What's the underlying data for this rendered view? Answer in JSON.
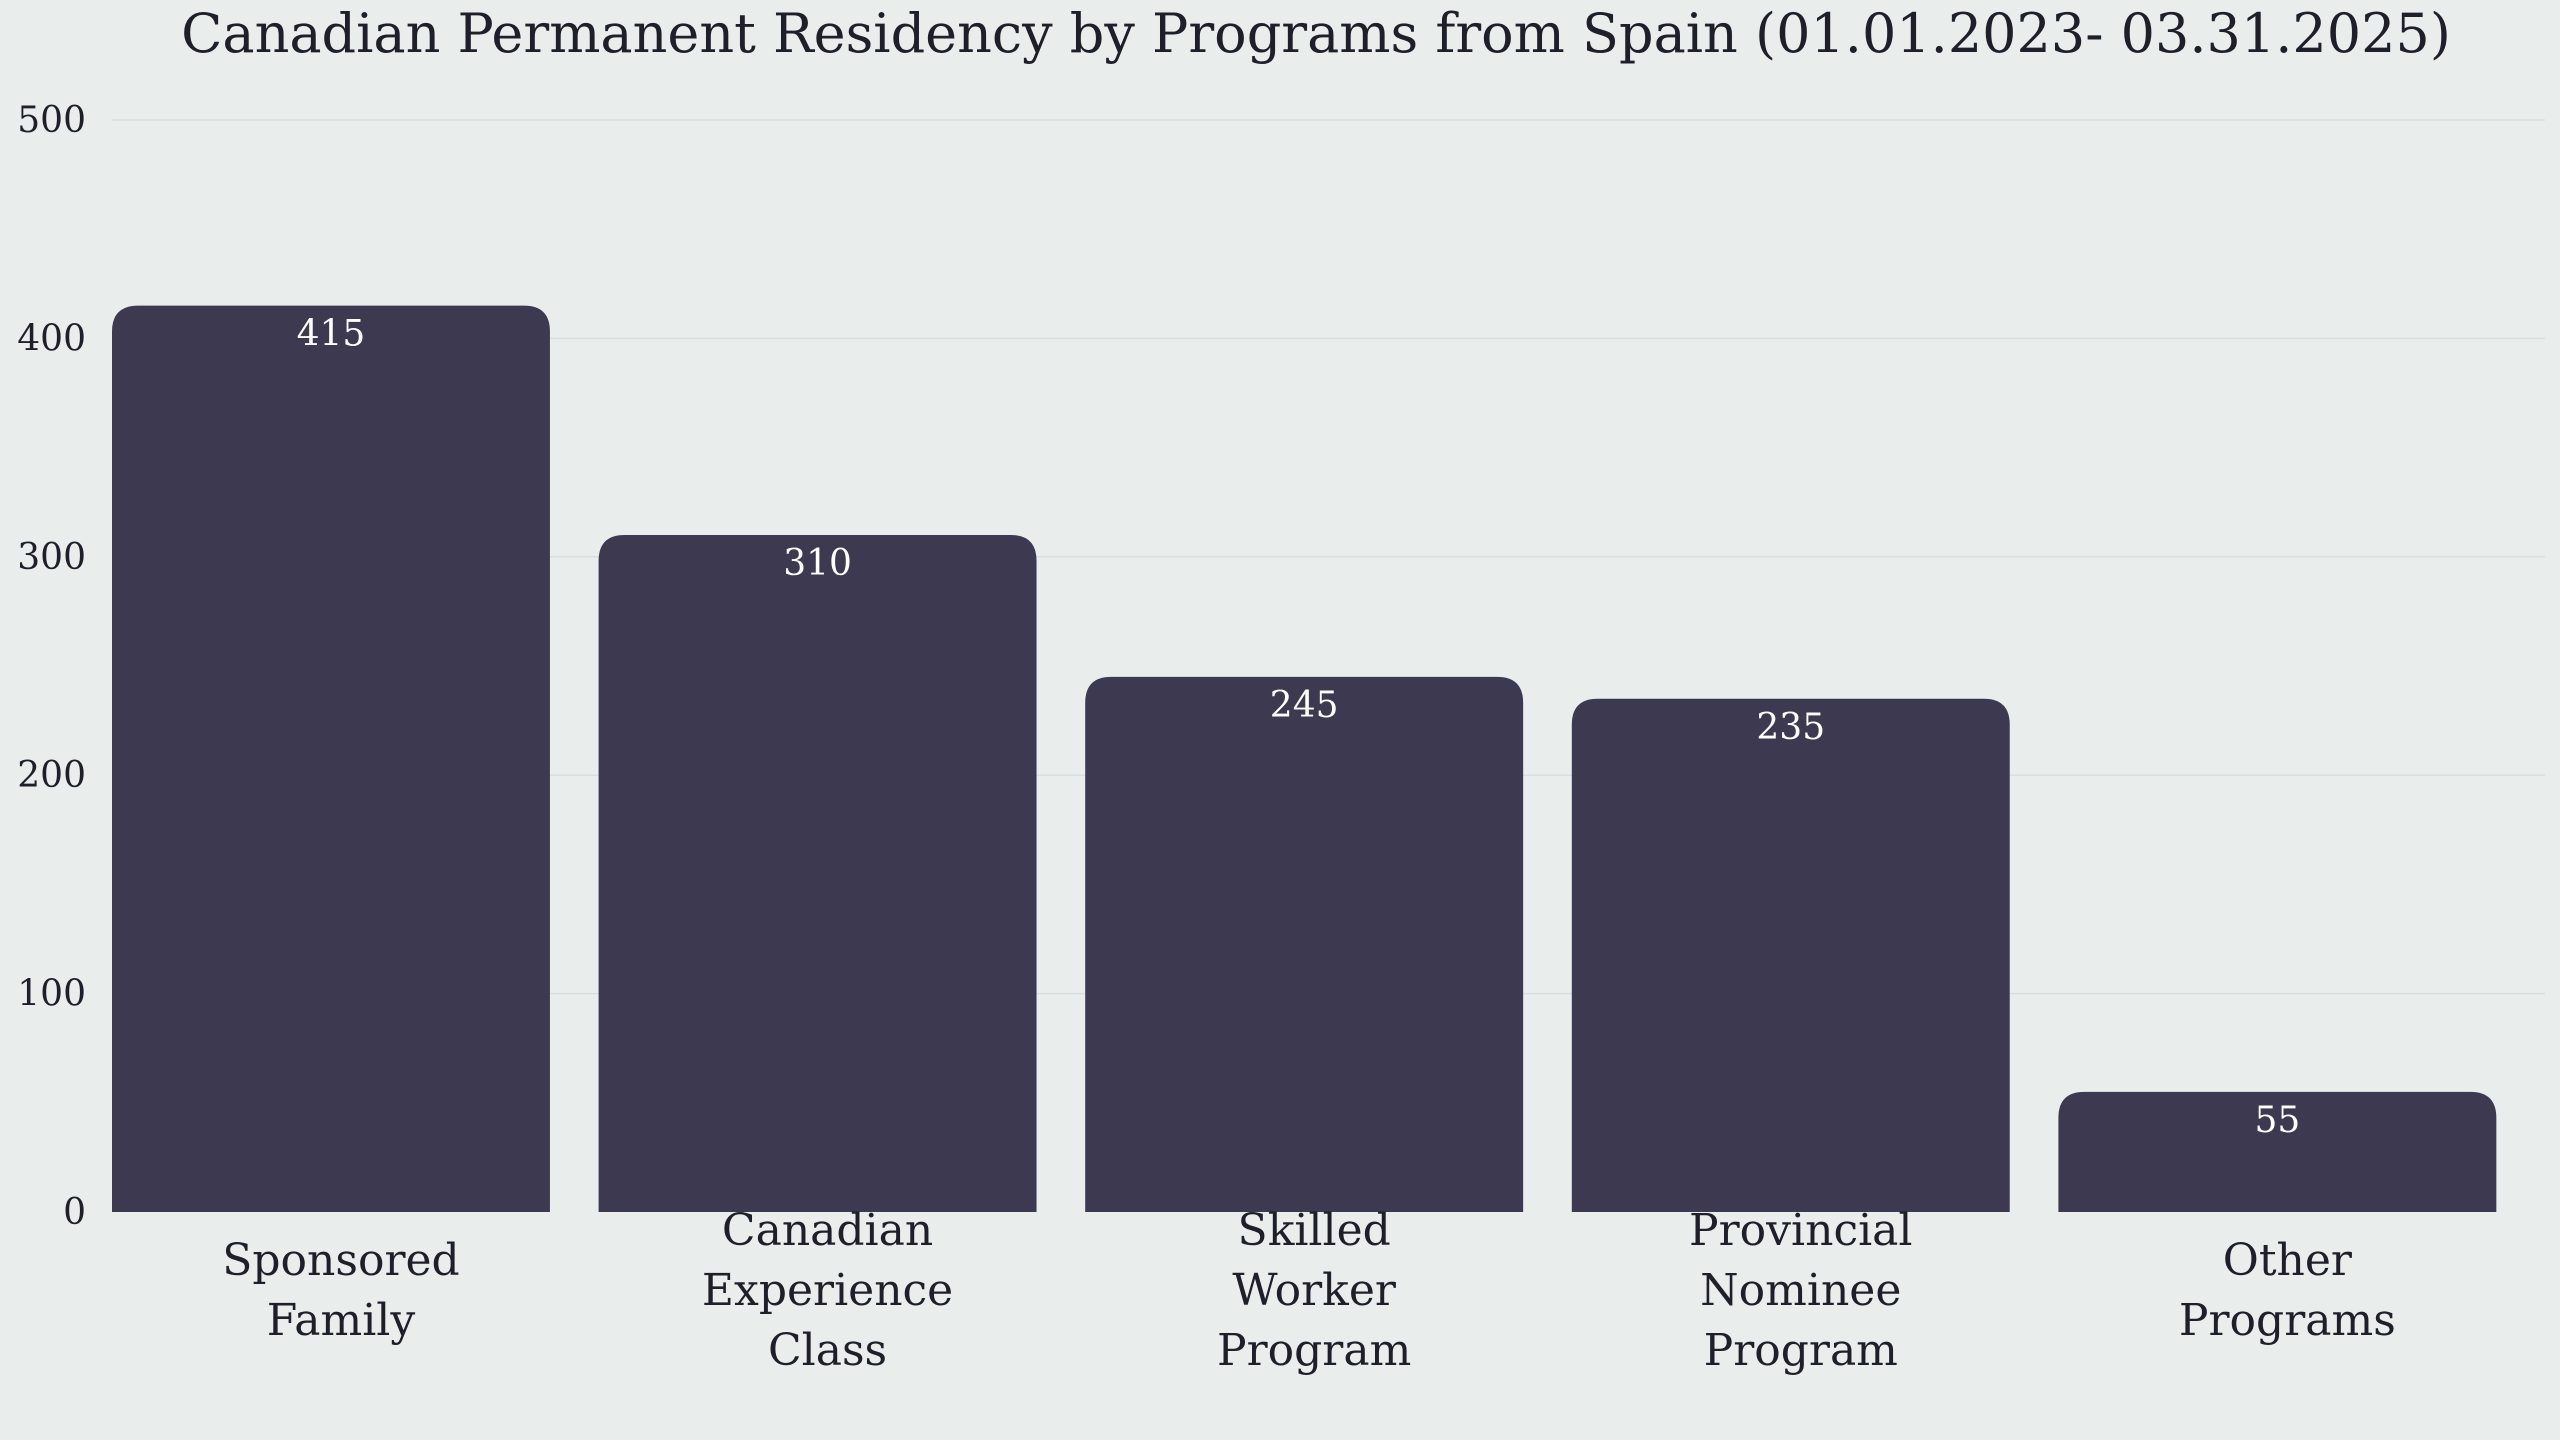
{
  "chart_data": {
    "type": "bar",
    "title": "Canadian Permanent Residency by Programs from Spain (01.01.2023- 03.31.2025)",
    "xlabel": "",
    "ylabel": "",
    "categories": [
      [
        "Sponsored",
        "Family"
      ],
      [
        "Canadian",
        "Experience",
        "Class"
      ],
      [
        "Skilled",
        "Worker",
        "Program"
      ],
      [
        "Provincial",
        "Nominee",
        "Program"
      ],
      [
        "Other",
        "Programs"
      ]
    ],
    "values": [
      415,
      310,
      245,
      235,
      55
    ],
    "ylim": [
      0,
      500
    ],
    "yticks": [
      0,
      100,
      200,
      300,
      400,
      500
    ],
    "grid": true,
    "bar_color": "#3d3950",
    "label_color": "#ffffff",
    "background": "#e9eeed"
  }
}
